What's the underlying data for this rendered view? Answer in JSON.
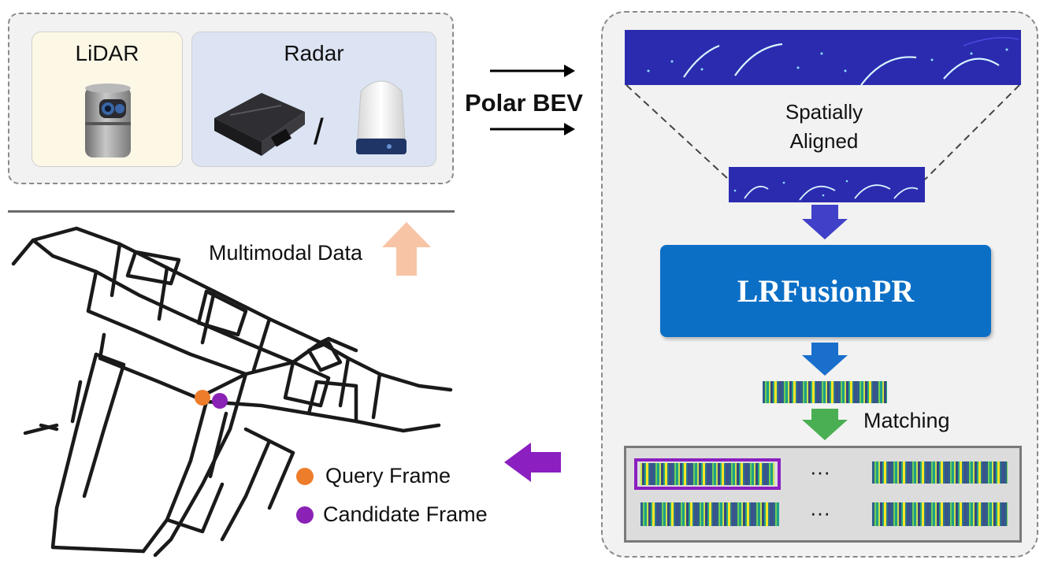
{
  "sensors": {
    "lidar_label": "LiDAR",
    "radar_label": "Radar",
    "separator": "/"
  },
  "arrows": {
    "polar_bev_label": "Polar BEV",
    "multimodal_label": "Multimodal Data"
  },
  "pipeline": {
    "aligned_label_line1": "Spatially",
    "aligned_label_line2": "Aligned",
    "model_name": "LRFusionPR",
    "matching_label": "Matching",
    "ellipsis": "···"
  },
  "legend": {
    "query_label": "Query Frame",
    "candidate_label": "Candidate Frame"
  },
  "colors": {
    "query": "#ee7d2b",
    "candidate": "#8a22b5",
    "bev_background": "#2b2bb0",
    "model_block": "#0b6fc6",
    "return_arrow": "#8b1fc0",
    "up_arrow": "#f7c4a5",
    "match_arrow": "#4aaf52",
    "arrow_blue_1": "#4040c8",
    "arrow_blue_2": "#1a6fcc"
  }
}
